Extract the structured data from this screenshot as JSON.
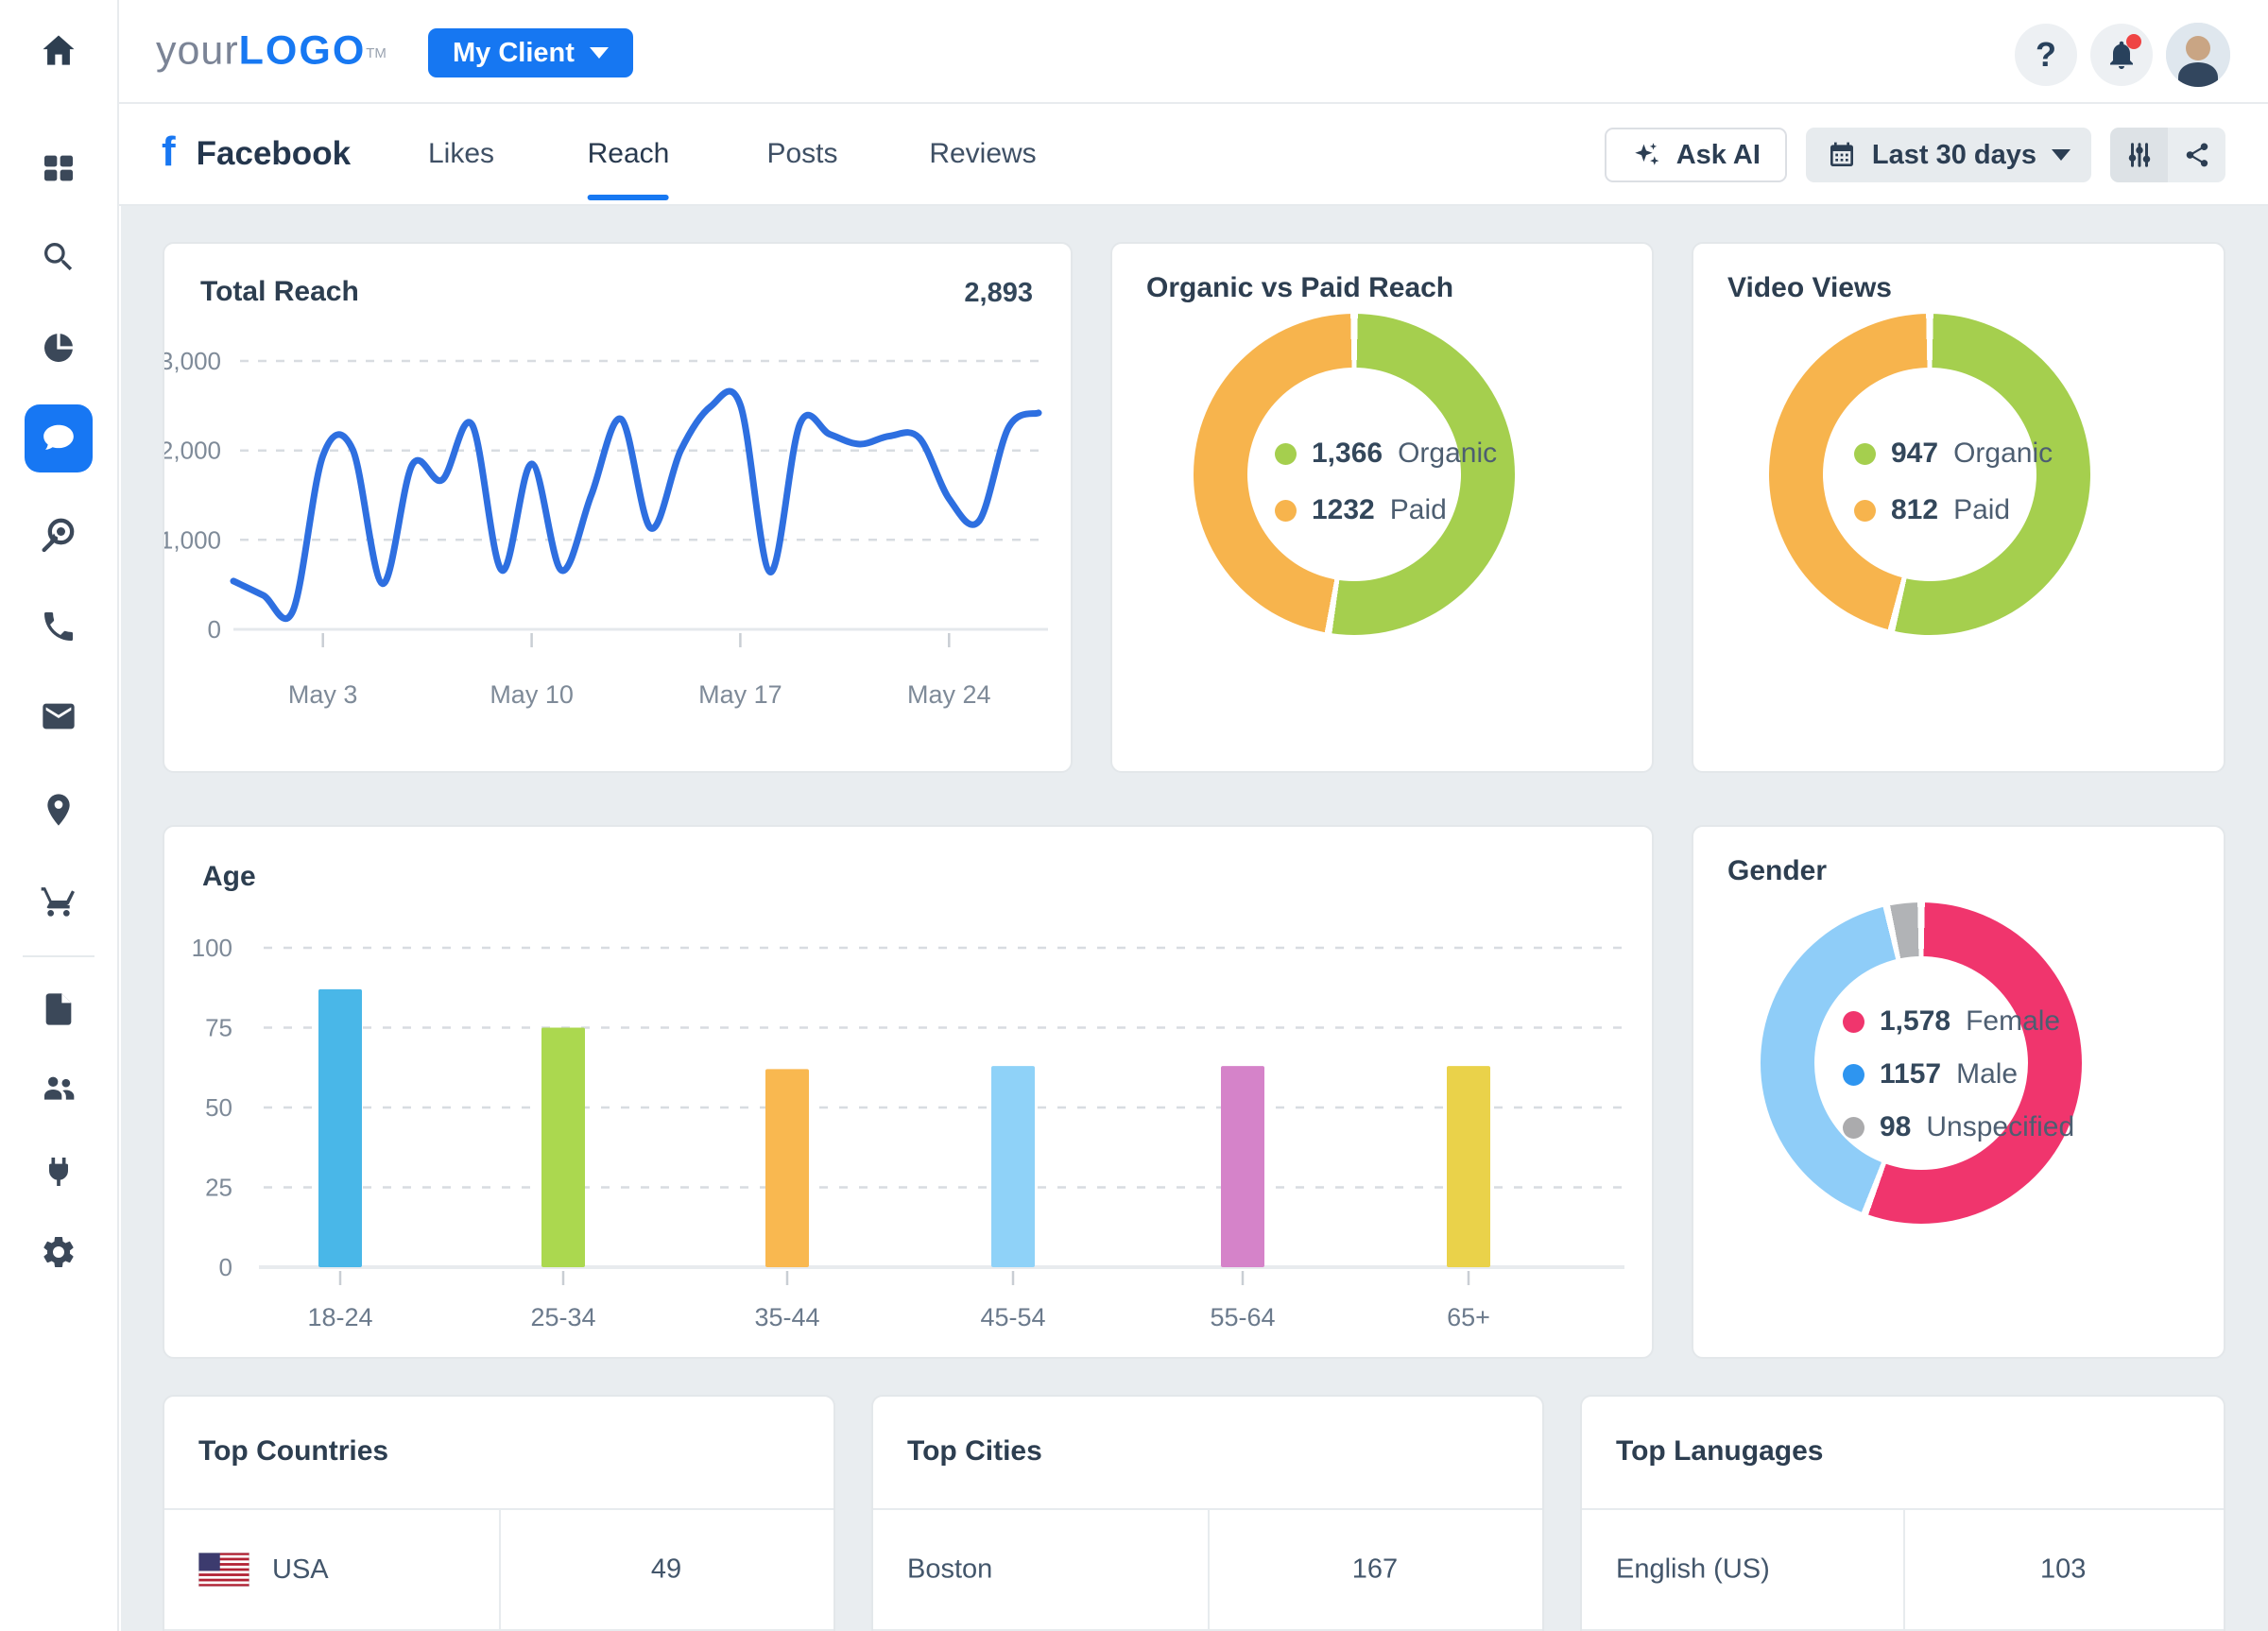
{
  "theme": {
    "accent_blue": "#1778f2",
    "background": "#e9edf0",
    "card_border": "#e3e7ea",
    "title_color": "#2d3e50",
    "muted_text": "#7e8a98"
  },
  "topbar": {
    "logo": {
      "prefix": "your",
      "main": "LOGO",
      "tm": "TM"
    },
    "client_selector_label": "My Client",
    "icons": [
      "help",
      "notifications",
      "user-avatar"
    ]
  },
  "nav_rail": {
    "top_icon": "home",
    "items": [
      {
        "icon": "grid"
      },
      {
        "icon": "search"
      },
      {
        "icon": "pie-chart"
      },
      {
        "icon": "chat",
        "active": true
      },
      {
        "icon": "target"
      },
      {
        "icon": "phone"
      },
      {
        "icon": "envelope"
      },
      {
        "icon": "location-pin"
      },
      {
        "icon": "shopping-cart"
      },
      {
        "divider": true
      },
      {
        "icon": "document"
      },
      {
        "icon": "users"
      },
      {
        "icon": "plug"
      },
      {
        "icon": "gear"
      }
    ]
  },
  "tabbar": {
    "brand": {
      "icon": "facebook",
      "label": "Facebook"
    },
    "tabs": [
      {
        "label": "Likes",
        "active": false
      },
      {
        "label": "Reach",
        "active": true
      },
      {
        "label": "Posts",
        "active": false
      },
      {
        "label": "Reviews",
        "active": false
      }
    ],
    "ask_ai_label": "Ask AI",
    "date_range_label": "Last 30 days",
    "tool_icons": [
      "filter-sliders",
      "share"
    ]
  },
  "chart_data": [
    {
      "id": "total_reach",
      "type": "line",
      "title": "Total Reach",
      "total_display": "2,893",
      "color": "#2e6fe0",
      "grid": "dashed",
      "x_tick_labels": [
        "May 3",
        "May 10",
        "May 17",
        "May 24"
      ],
      "x_tick_indices": [
        3,
        10,
        17,
        24
      ],
      "values": [
        540,
        380,
        210,
        1940,
        2010,
        510,
        1840,
        1670,
        2290,
        660,
        1850,
        660,
        1500,
        2350,
        1130,
        2000,
        2490,
        2510,
        640,
        2300,
        2180,
        2070,
        2160,
        2140,
        1460,
        1210,
        2260,
        2420
      ],
      "ylim": [
        0,
        3000
      ],
      "y_tick_values": [
        0,
        1000,
        2000,
        3000
      ],
      "y_tick_labels": [
        "0",
        "1,000",
        "2,000",
        "3,000"
      ]
    },
    {
      "id": "organic_vs_paid_reach",
      "type": "donut",
      "title": "Organic vs Paid Reach",
      "segments": [
        {
          "label": "Organic",
          "value": 1366,
          "display": "1,366",
          "color": "#a5cf4e",
          "dot_color": "#a5cf4e"
        },
        {
          "label": "Paid",
          "value": 1232,
          "display": "1232",
          "color": "#f7b44d",
          "dot_color": "#f7b44d"
        }
      ]
    },
    {
      "id": "video_views",
      "type": "donut",
      "title": "Video Views",
      "segments": [
        {
          "label": "Organic",
          "value": 947,
          "display": "947",
          "color": "#a5cf4e",
          "dot_color": "#a5cf4e"
        },
        {
          "label": "Paid",
          "value": 812,
          "display": "812",
          "color": "#f7b44d",
          "dot_color": "#f7b44d"
        }
      ]
    },
    {
      "id": "age",
      "type": "bar",
      "title": "Age",
      "grid": "dashed",
      "categories": [
        "18-24",
        "25-34",
        "35-44",
        "45-54",
        "55-64",
        "65+"
      ],
      "values": [
        87,
        75,
        62,
        63,
        63,
        63
      ],
      "bar_colors": [
        "#49b7e8",
        "#abd84f",
        "#f9b850",
        "#8fd2f8",
        "#d583c9",
        "#ead24a"
      ],
      "ylim": [
        0,
        100
      ],
      "y_tick_values": [
        0,
        25,
        50,
        75,
        100
      ],
      "y_tick_labels": [
        "0",
        "25",
        "50",
        "75",
        "100"
      ]
    },
    {
      "id": "gender",
      "type": "donut",
      "title": "Gender",
      "segments": [
        {
          "label": "Female",
          "value": 1578,
          "display": "1,578",
          "color": "#f0356d",
          "dot_color": "#f0356d"
        },
        {
          "label": "Male",
          "value": 1157,
          "display": "1157",
          "color": "#8fcdf8",
          "dot_color": "#2e95f0"
        },
        {
          "label": "Unspecified",
          "value": 98,
          "display": "98",
          "color": "#b1b3b6",
          "dot_color": "#ababad"
        }
      ]
    }
  ],
  "tables": [
    {
      "title": "Top Countries",
      "rows": [
        {
          "label": "USA",
          "value": "49",
          "flag": "usa-flag"
        }
      ]
    },
    {
      "title": "Top Cities",
      "rows": [
        {
          "label": "Boston",
          "value": "167"
        }
      ]
    },
    {
      "title": "Top Lanugages",
      "rows": [
        {
          "label": "English (US)",
          "value": "103"
        }
      ]
    }
  ]
}
